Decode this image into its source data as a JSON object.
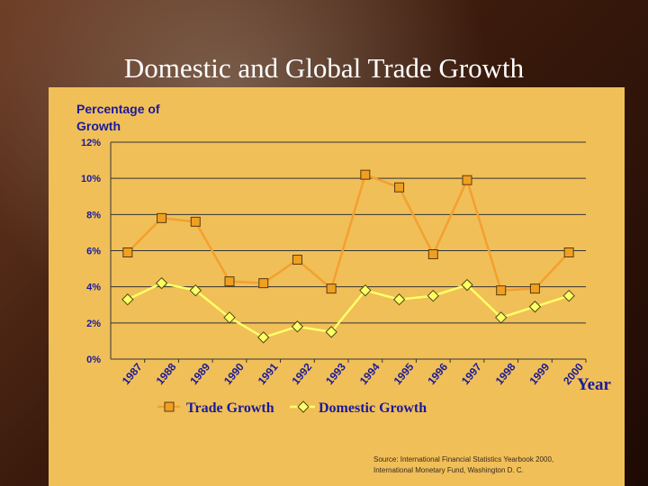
{
  "slide": {
    "title": "Domestic and Global Trade Growth",
    "source_line1": "Source: International Financial Statistics Yearbook 2000,",
    "source_line2": "International Monetary Fund, Washington D. C."
  },
  "colors": {
    "panel": "#f0bf58",
    "trade_line": "#f3a030",
    "trade_marker": "#f0a020",
    "domestic_line": "#ffff66",
    "domestic_marker": "#ffff66",
    "axis_text": "#1a1a9a",
    "grid": "#333333"
  },
  "chart_data": {
    "type": "line",
    "ylabel_line1": "Percentage of",
    "ylabel_line2": "Growth",
    "xlabel": "Year",
    "ylim": [
      0,
      12
    ],
    "y_ticks": [
      "0%",
      "2%",
      "4%",
      "6%",
      "8%",
      "10%",
      "12%"
    ],
    "y_tick_values": [
      0,
      2,
      4,
      6,
      8,
      10,
      12
    ],
    "categories": [
      "1987",
      "1988",
      "1989",
      "1990",
      "1991",
      "1992",
      "1993",
      "1994",
      "1995",
      "1996",
      "1997",
      "1998",
      "1999",
      "2000"
    ],
    "grid": true,
    "legend_position": "bottom",
    "series": [
      {
        "name": "Trade Growth",
        "marker": "square",
        "values": [
          5.9,
          7.8,
          7.6,
          4.3,
          4.2,
          5.5,
          3.9,
          10.2,
          9.5,
          5.8,
          9.9,
          3.8,
          3.9,
          5.9
        ]
      },
      {
        "name": "Domestic Growth",
        "marker": "diamond",
        "values": [
          3.3,
          4.2,
          3.8,
          2.3,
          1.2,
          1.8,
          1.5,
          3.8,
          3.3,
          3.5,
          4.1,
          2.3,
          2.9,
          3.5
        ]
      }
    ]
  }
}
